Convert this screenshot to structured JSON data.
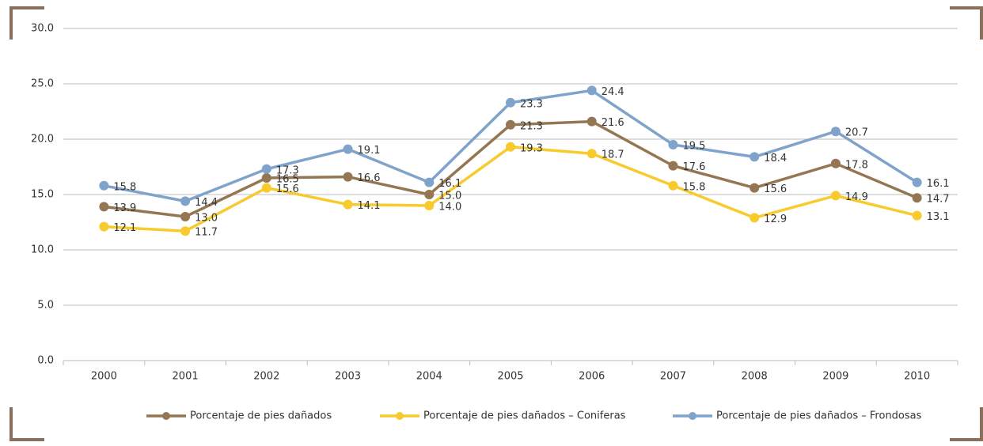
{
  "chart_data": {
    "type": "line",
    "categories": [
      "2000",
      "2001",
      "2002",
      "2003",
      "2004",
      "2005",
      "2006",
      "2007",
      "2008",
      "2009",
      "2010"
    ],
    "series": [
      {
        "name": "Porcentaje de pies dañados",
        "color": "#947652",
        "values": [
          13.9,
          13.0,
          16.5,
          16.6,
          15.0,
          21.3,
          21.6,
          17.6,
          15.6,
          17.8,
          14.7
        ],
        "value_labels": [
          "13.9",
          "13.0",
          "16.5",
          "16.6",
          "15.0",
          "21.3",
          "21.6",
          "17.6",
          "15.6",
          "17.8",
          "14.7"
        ]
      },
      {
        "name": "Porcentaje de pies dañados – Coniferas",
        "color": "#F7CB2D",
        "values": [
          12.1,
          11.7,
          15.6,
          14.1,
          14.0,
          19.3,
          18.7,
          15.8,
          12.9,
          14.9,
          13.1
        ],
        "value_labels": [
          "12.1",
          "11.7",
          "15.6",
          "14.1",
          "14.0",
          "19.3",
          "18.7",
          "15.8",
          "12.9",
          "14.9",
          "13.1"
        ]
      },
      {
        "name": "Porcentaje de pies dañados – Frondosas",
        "color": "#7FA3CB",
        "values": [
          15.8,
          14.4,
          17.3,
          19.1,
          16.1,
          23.3,
          24.4,
          19.5,
          18.4,
          20.7,
          16.1
        ],
        "value_labels": [
          "15.8",
          "14.4",
          "17.3",
          "19.1",
          "16.1",
          "23.3",
          "24.4",
          "19.5",
          "18.4",
          "20.7",
          "16.1"
        ]
      }
    ],
    "ylim": [
      0,
      30
    ],
    "yticks": [
      {
        "value": 0,
        "label": "0.0"
      },
      {
        "value": 5,
        "label": "5.0"
      },
      {
        "value": 10,
        "label": "10.0"
      },
      {
        "value": 15,
        "label": "15.0"
      },
      {
        "value": 20,
        "label": "20.0"
      },
      {
        "value": 25,
        "label": "25.0"
      },
      {
        "value": 30,
        "label": "30.0"
      }
    ],
    "grid": true,
    "legend": "bottom"
  }
}
